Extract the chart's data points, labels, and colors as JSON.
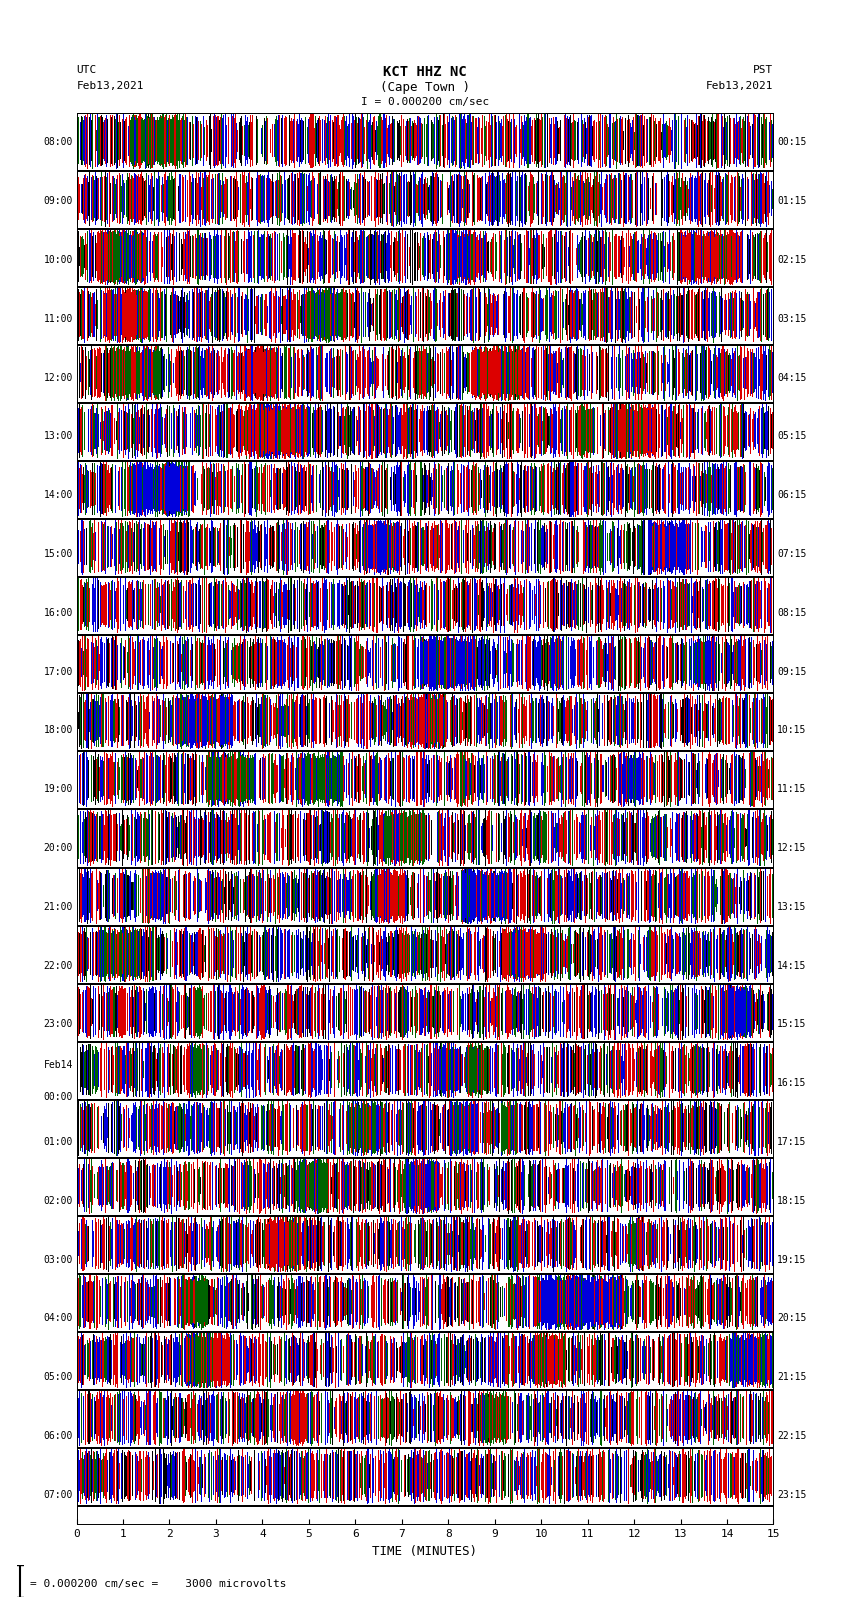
{
  "title_line1": "KCT HHZ NC",
  "title_line2": "(Cape Town )",
  "title_scale": "I = 0.000200 cm/sec",
  "left_label_line1": "UTC",
  "left_label_line2": "Feb13,2021",
  "right_label_line1": "PST",
  "right_label_line2": "Feb13,2021",
  "bottom_note": "= 0.000200 cm/sec =    3000 microvolts",
  "xlabel": "TIME (MINUTES)",
  "utc_times": [
    "08:00",
    "09:00",
    "10:00",
    "11:00",
    "12:00",
    "13:00",
    "14:00",
    "15:00",
    "16:00",
    "17:00",
    "18:00",
    "19:00",
    "20:00",
    "21:00",
    "22:00",
    "23:00",
    "Feb14\n00:00",
    "01:00",
    "02:00",
    "03:00",
    "04:00",
    "05:00",
    "06:00",
    "07:00"
  ],
  "pst_times": [
    "00:15",
    "01:15",
    "02:15",
    "03:15",
    "04:15",
    "05:15",
    "06:15",
    "07:15",
    "08:15",
    "09:15",
    "10:15",
    "11:15",
    "12:15",
    "13:15",
    "14:15",
    "15:15",
    "16:15",
    "17:15",
    "18:15",
    "19:15",
    "20:15",
    "21:15",
    "22:15",
    "23:15"
  ],
  "n_rows": 24,
  "minutes_per_row": 15,
  "xlim": [
    0,
    15
  ],
  "xticks": [
    0,
    1,
    2,
    3,
    4,
    5,
    6,
    7,
    8,
    9,
    10,
    11,
    12,
    13,
    14,
    15
  ],
  "fig_width": 8.5,
  "fig_height": 16.13,
  "bg_color": "#FFFFFF"
}
